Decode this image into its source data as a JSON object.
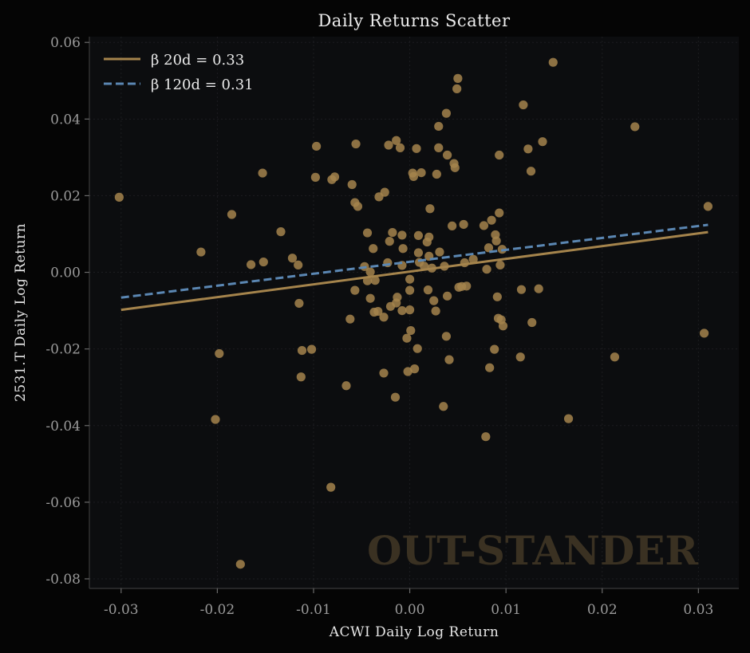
{
  "colors": {
    "background": "#050505",
    "plot_area": "#0c0d0f",
    "points": "#a5844c",
    "line_20d": "#a5844c",
    "line_120d": "#5b87b3",
    "watermark": "#3a3122"
  },
  "watermark": "OUT-STANDER",
  "chart_data": {
    "type": "scatter",
    "title": "Daily Returns Scatter",
    "xlabel": "ACWI Daily Log Return",
    "ylabel": "2531.T Daily Log Return",
    "xlim": [
      -0.0333,
      0.0342
    ],
    "ylim": [
      -0.0825,
      0.0615
    ],
    "xticks": [
      -0.03,
      -0.02,
      -0.01,
      0.0,
      0.01,
      0.02,
      0.03
    ],
    "xtick_labels": [
      "-0.03",
      "-0.02",
      "-0.01",
      "0.00",
      "0.01",
      "0.02",
      "0.03"
    ],
    "yticks": [
      -0.08,
      -0.06,
      -0.04,
      -0.02,
      0.0,
      0.02,
      0.04,
      0.06
    ],
    "ytick_labels": [
      "-0.08",
      "-0.06",
      "-0.04",
      "-0.02",
      "0.00",
      "0.02",
      "0.04",
      "0.06"
    ],
    "grid": true,
    "legend_position": "top-left",
    "legend": [
      {
        "label": "β 20d = 0.33",
        "style": "solid"
      },
      {
        "label": "β 120d = 0.31",
        "style": "dashed"
      }
    ],
    "lines": [
      {
        "name": "β 20d = 0.33",
        "style": "solid",
        "x": [
          -0.03,
          0.031
        ],
        "y": [
          -0.0098,
          0.0105
        ]
      },
      {
        "name": "β 120d = 0.31",
        "style": "dashed",
        "x": [
          -0.03,
          0.031
        ],
        "y": [
          -0.0066,
          0.0124
        ]
      }
    ],
    "points": [
      [
        -0.0302,
        0.0196
      ],
      [
        -0.0217,
        0.0053
      ],
      [
        -0.0185,
        0.0151
      ],
      [
        -0.0198,
        -0.0212
      ],
      [
        -0.0202,
        -0.0384
      ],
      [
        -0.0176,
        -0.0762
      ],
      [
        -0.0165,
        0.002
      ],
      [
        -0.0153,
        0.0259
      ],
      [
        -0.0152,
        0.0027
      ],
      [
        -0.0134,
        0.0106
      ],
      [
        -0.0122,
        0.0037
      ],
      [
        -0.0116,
        0.0019
      ],
      [
        -0.0115,
        -0.0081
      ],
      [
        -0.0112,
        -0.0204
      ],
      [
        -0.0113,
        -0.0273
      ],
      [
        -0.0102,
        -0.0201
      ],
      [
        -0.0097,
        0.0329
      ],
      [
        -0.0098,
        0.0248
      ],
      [
        -0.0081,
        0.0242
      ],
      [
        -0.0078,
        0.0249
      ],
      [
        -0.0082,
        -0.0561
      ],
      [
        -0.0066,
        -0.0296
      ],
      [
        -0.0062,
        -0.0122
      ],
      [
        -0.006,
        0.0229
      ],
      [
        -0.0057,
        0.0182
      ],
      [
        -0.0054,
        0.0172
      ],
      [
        -0.0056,
        0.0335
      ],
      [
        -0.0057,
        -0.0047
      ],
      [
        -0.0047,
        0.0015
      ],
      [
        -0.0044,
        0.0103
      ],
      [
        -0.0044,
        -0.0022
      ],
      [
        -0.0041,
        0.0001
      ],
      [
        -0.0041,
        -0.0068
      ],
      [
        -0.0038,
        0.0062
      ],
      [
        -0.0036,
        -0.0021
      ],
      [
        -0.0037,
        -0.0104
      ],
      [
        -0.0033,
        -0.0102
      ],
      [
        -0.0032,
        0.0197
      ],
      [
        -0.0026,
        0.0209
      ],
      [
        -0.0027,
        -0.0117
      ],
      [
        -0.0027,
        -0.0263
      ],
      [
        -0.0023,
        0.0025
      ],
      [
        -0.0021,
        0.0081
      ],
      [
        -0.002,
        -0.0089
      ],
      [
        -0.0022,
        0.0332
      ],
      [
        -0.0018,
        0.0104
      ],
      [
        -0.0014,
        0.0344
      ],
      [
        -0.0013,
        -0.0065
      ],
      [
        -0.0014,
        -0.008
      ],
      [
        -0.0015,
        -0.0326
      ],
      [
        -0.001,
        0.0325
      ],
      [
        -0.0008,
        0.0097
      ],
      [
        -0.0008,
        0.0018
      ],
      [
        -0.0007,
        0.0062
      ],
      [
        -0.0008,
        -0.01
      ],
      [
        -0.0003,
        -0.0172
      ],
      [
        -0.0002,
        -0.0259
      ],
      [
        0.0,
        -0.0018
      ],
      [
        0.0,
        -0.0047
      ],
      [
        0.0,
        -0.0098
      ],
      [
        0.0001,
        -0.0152
      ],
      [
        0.0003,
        0.0259
      ],
      [
        0.0004,
        0.025
      ],
      [
        0.0005,
        -0.0252
      ],
      [
        0.0007,
        0.0323
      ],
      [
        0.0008,
        -0.0199
      ],
      [
        0.0009,
        0.0096
      ],
      [
        0.0009,
        0.0051
      ],
      [
        0.001,
        0.0026
      ],
      [
        0.0012,
        0.026
      ],
      [
        0.0015,
        0.0016
      ],
      [
        0.0018,
        0.0079
      ],
      [
        0.0019,
        -0.0046
      ],
      [
        0.002,
        0.0042
      ],
      [
        0.002,
        0.0092
      ],
      [
        0.0021,
        0.0166
      ],
      [
        0.0023,
        0.0011
      ],
      [
        0.0025,
        -0.0074
      ],
      [
        0.0027,
        -0.0101
      ],
      [
        0.0028,
        0.0256
      ],
      [
        0.003,
        0.0325
      ],
      [
        0.003,
        0.0381
      ],
      [
        0.0031,
        0.0053
      ],
      [
        0.0035,
        -0.035
      ],
      [
        0.0036,
        0.0016
      ],
      [
        0.0038,
        -0.0167
      ],
      [
        0.0038,
        0.0415
      ],
      [
        0.0039,
        0.0306
      ],
      [
        0.0039,
        -0.0062
      ],
      [
        0.0041,
        -0.0228
      ],
      [
        0.0044,
        0.0121
      ],
      [
        0.0046,
        0.0284
      ],
      [
        0.0047,
        0.0273
      ],
      [
        0.0049,
        0.0479
      ],
      [
        0.005,
        0.0506
      ],
      [
        0.0051,
        -0.0039
      ],
      [
        0.0054,
        -0.0037
      ],
      [
        0.0056,
        0.0125
      ],
      [
        0.0057,
        0.0025
      ],
      [
        0.0059,
        -0.0036
      ],
      [
        0.0066,
        0.0034
      ],
      [
        0.0077,
        0.0122
      ],
      [
        0.0079,
        -0.0429
      ],
      [
        0.008,
        0.0008
      ],
      [
        0.0082,
        0.0064
      ],
      [
        0.0083,
        -0.0249
      ],
      [
        0.0085,
        0.0136
      ],
      [
        0.0088,
        -0.0201
      ],
      [
        0.0089,
        0.0098
      ],
      [
        0.009,
        0.0082
      ],
      [
        0.0091,
        -0.0064
      ],
      [
        0.0092,
        -0.012
      ],
      [
        0.0093,
        0.0306
      ],
      [
        0.0093,
        0.0155
      ],
      [
        0.0094,
        0.0019
      ],
      [
        0.0095,
        -0.0124
      ],
      [
        0.0096,
        0.006
      ],
      [
        0.0097,
        -0.014
      ],
      [
        0.0115,
        -0.0221
      ],
      [
        0.0116,
        -0.0045
      ],
      [
        0.0118,
        0.0437
      ],
      [
        0.0123,
        0.0322
      ],
      [
        0.0126,
        0.0264
      ],
      [
        0.0127,
        -0.0131
      ],
      [
        0.0134,
        -0.0043
      ],
      [
        0.0138,
        0.0341
      ],
      [
        0.0149,
        0.0548
      ],
      [
        0.0165,
        -0.0382
      ],
      [
        0.0213,
        -0.0221
      ],
      [
        0.0234,
        0.038
      ],
      [
        0.0306,
        -0.0159
      ],
      [
        0.031,
        0.0172
      ]
    ]
  }
}
